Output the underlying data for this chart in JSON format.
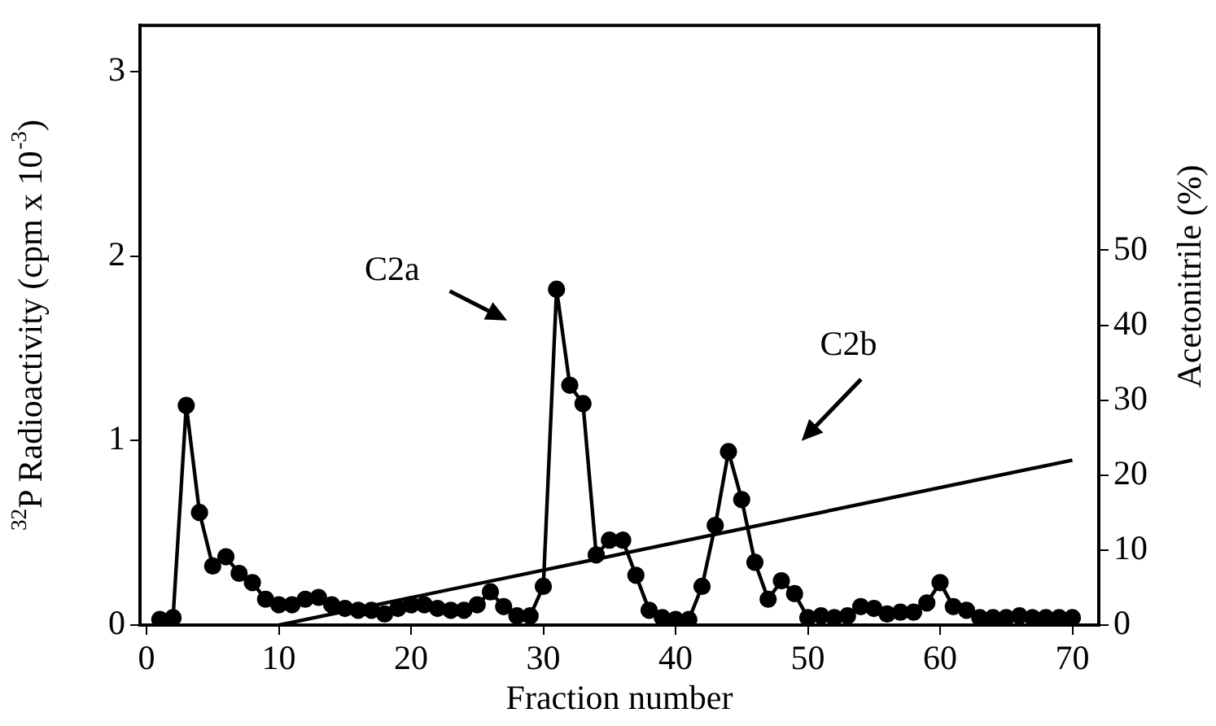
{
  "chart_data": {
    "type": "line",
    "xlabel": "Fraction number",
    "ylabel": "$^{32}$P Radioactivity (cpm x 10$^{-3}$)",
    "y2label": "Acetonitrile (%)",
    "x": [
      1,
      2,
      3,
      4,
      5,
      6,
      7,
      8,
      9,
      10,
      11,
      12,
      13,
      14,
      15,
      16,
      17,
      18,
      19,
      20,
      21,
      22,
      23,
      24,
      25,
      26,
      27,
      28,
      29,
      30,
      31,
      32,
      33,
      34,
      35,
      36,
      37,
      38,
      39,
      40,
      41,
      42,
      43,
      44,
      45,
      46,
      47,
      48,
      49,
      50,
      51,
      52,
      53,
      54,
      55,
      56,
      57,
      58,
      59,
      60,
      61,
      62,
      63,
      64,
      65,
      66,
      67,
      68,
      69,
      70
    ],
    "series": [
      {
        "color": "#000000",
        "marker": "circle",
        "values": [
          0.03,
          0.04,
          1.19,
          0.61,
          0.32,
          0.37,
          0.28,
          0.23,
          0.14,
          0.11,
          0.11,
          0.14,
          0.15,
          0.11,
          0.09,
          0.08,
          0.08,
          0.06,
          0.09,
          0.11,
          0.11,
          0.09,
          0.08,
          0.08,
          0.11,
          0.18,
          0.1,
          0.05,
          0.05,
          0.21,
          1.82,
          1.3,
          1.2,
          0.38,
          0.46,
          0.46,
          0.27,
          0.08,
          0.04,
          0.03,
          0.03,
          0.21,
          0.54,
          0.94,
          0.68,
          0.34,
          0.14,
          0.24,
          0.17,
          0.04,
          0.05,
          0.04,
          0.05,
          0.1,
          0.09,
          0.06,
          0.07,
          0.07,
          0.12,
          0.23,
          0.1,
          0.08,
          0.04,
          0.04,
          0.04,
          0.05,
          0.04,
          0.04,
          0.04,
          0.04
        ]
      },
      {
        "color": "#000000",
        "marker": "none",
        "axis": "y2",
        "x": [
          10,
          70
        ],
        "values": [
          0,
          22
        ]
      }
    ],
    "xlim": [
      -0.5,
      72
    ],
    "xticks": [
      0,
      10,
      20,
      30,
      40,
      50,
      60,
      70
    ],
    "ylim": [
      0,
      3.25
    ],
    "yticks": [
      0,
      1,
      2,
      3
    ],
    "y2lim": [
      0,
      80
    ],
    "y2ticks": [
      0,
      10,
      20,
      30,
      40,
      50
    ],
    "annotations": [
      "C2a",
      "C2b"
    ],
    "grid": false,
    "legend": false,
    "line_style": "solid"
  }
}
